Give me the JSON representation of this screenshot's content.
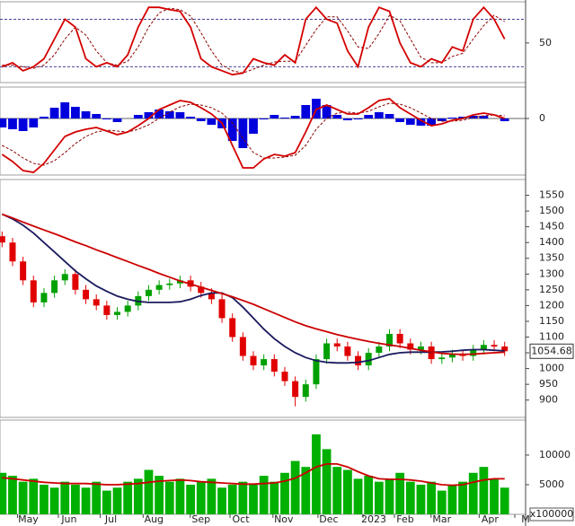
{
  "chart_data": [
    {
      "type": "line",
      "x": [
        0,
        1,
        2,
        3,
        4,
        5,
        6,
        7,
        8,
        9,
        10,
        11,
        12,
        13,
        14,
        15,
        16,
        17,
        18,
        19,
        20,
        21,
        22,
        23,
        24,
        25,
        26,
        27,
        28,
        29,
        30,
        31,
        32,
        33,
        34,
        35,
        36,
        37,
        38,
        39,
        40,
        41,
        42,
        43,
        44,
        45,
        46,
        47,
        48
      ],
      "xlim": [
        -0.2,
        50
      ],
      "ylim": [
        0,
        102
      ],
      "yticks": [
        50
      ],
      "bands": [
        20,
        80
      ],
      "band_color": "#2a2a8a",
      "grid": false,
      "series": [
        {
          "color": "#8b0000",
          "dash": true,
          "values": [
            22,
            22,
            20,
            18,
            22,
            35,
            55,
            70,
            60,
            40,
            25,
            22,
            27,
            45,
            70,
            88,
            94,
            92,
            84,
            63,
            40,
            22,
            15,
            12,
            17,
            22,
            26,
            27,
            27,
            47,
            67,
            83,
            83,
            65,
            45,
            43,
            62,
            85,
            78,
            55,
            32,
            25,
            25,
            33,
            37,
            55,
            72,
            85,
            77
          ]
        },
        {
          "color": "#d40000",
          "dash": false,
          "values": [
            20,
            25,
            15,
            20,
            30,
            55,
            80,
            70,
            30,
            20,
            25,
            20,
            35,
            70,
            95,
            95,
            92,
            90,
            70,
            30,
            20,
            15,
            10,
            12,
            30,
            25,
            22,
            35,
            25,
            80,
            95,
            80,
            75,
            40,
            20,
            70,
            95,
            90,
            50,
            25,
            20,
            30,
            25,
            45,
            40,
            80,
            95,
            80,
            55
          ]
        }
      ]
    },
    {
      "type": "combo",
      "x": [
        0,
        1,
        2,
        3,
        4,
        5,
        6,
        7,
        8,
        9,
        10,
        11,
        12,
        13,
        14,
        15,
        16,
        17,
        18,
        19,
        20,
        21,
        22,
        23,
        24,
        25,
        26,
        27,
        28,
        29,
        30,
        31,
        32,
        33,
        34,
        35,
        36,
        37,
        38,
        39,
        40,
        41,
        42,
        43,
        44,
        45,
        46,
        47,
        48
      ],
      "xlim": [
        -0.2,
        50
      ],
      "ylim": [
        -63,
        35
      ],
      "yticks": [
        0
      ],
      "grid": true,
      "series": [
        {
          "kind": "bar",
          "color": "#0000dd",
          "values": [
            -10,
            -12,
            -14,
            -10,
            2,
            12,
            18,
            13,
            8,
            5,
            -1,
            -4,
            0,
            4,
            7,
            10,
            8,
            7,
            2,
            -3,
            -7,
            -11,
            -25,
            -33,
            -17,
            -1,
            4,
            1,
            3,
            15,
            22,
            15,
            4,
            -2,
            -1,
            4,
            7,
            5,
            -4,
            -7,
            -8,
            -8,
            -3,
            1,
            2,
            3,
            3,
            0,
            -3
          ]
        },
        {
          "kind": "line",
          "color": "#8b0000",
          "dash": true,
          "values": [
            -30,
            -36,
            -44,
            -50,
            -52,
            -47,
            -38,
            -28,
            -20,
            -15,
            -13,
            -14,
            -15,
            -12,
            -7,
            0,
            7,
            13,
            16,
            15,
            12,
            6,
            -5,
            -22,
            -38,
            -44,
            -44,
            -43,
            -41,
            -30,
            -12,
            0,
            6,
            7,
            6,
            8,
            13,
            17,
            16,
            12,
            6,
            0,
            -3,
            -3,
            -2,
            1,
            3,
            4,
            3
          ]
        },
        {
          "kind": "line",
          "color": "#d40000",
          "dash": false,
          "values": [
            -40,
            -48,
            -58,
            -60,
            -50,
            -35,
            -20,
            -15,
            -12,
            -10,
            -14,
            -18,
            -15,
            -8,
            0,
            10,
            15,
            20,
            18,
            12,
            5,
            -5,
            -30,
            -55,
            -55,
            -45,
            -40,
            -42,
            -38,
            -15,
            10,
            15,
            10,
            5,
            5,
            12,
            20,
            22,
            12,
            5,
            -2,
            -8,
            -6,
            -2,
            0,
            4,
            6,
            4,
            0
          ]
        }
      ]
    },
    {
      "type": "candlestick",
      "x": [
        0,
        1,
        2,
        3,
        4,
        5,
        6,
        7,
        8,
        9,
        10,
        11,
        12,
        13,
        14,
        15,
        16,
        17,
        18,
        19,
        20,
        21,
        22,
        23,
        24,
        25,
        26,
        27,
        28,
        29,
        30,
        31,
        32,
        33,
        34,
        35,
        36,
        37,
        38,
        39,
        40,
        41,
        42,
        43,
        44,
        45,
        46,
        47,
        48
      ],
      "xlim": [
        -0.2,
        50
      ],
      "ylim": [
        845,
        1600
      ],
      "yticks": [
        900,
        950,
        1000,
        1050,
        1100,
        1150,
        1200,
        1250,
        1300,
        1350,
        1400,
        1450,
        1500,
        1550
      ],
      "grid": false,
      "up_color": "#00a000",
      "down_color": "#e00000",
      "last_label": "1054.68",
      "open": [
        1420,
        1400,
        1340,
        1280,
        1210,
        1240,
        1280,
        1300,
        1250,
        1220,
        1200,
        1170,
        1180,
        1200,
        1230,
        1250,
        1265,
        1270,
        1280,
        1260,
        1240,
        1220,
        1160,
        1100,
        1040,
        1010,
        1030,
        990,
        960,
        910,
        950,
        1030,
        1080,
        1070,
        1040,
        1010,
        1050,
        1070,
        1110,
        1080,
        1060,
        1070,
        1030,
        1035,
        1045,
        1040,
        1060,
        1075,
        1070
      ],
      "high": [
        1435,
        1415,
        1355,
        1295,
        1255,
        1295,
        1315,
        1315,
        1265,
        1235,
        1215,
        1195,
        1215,
        1245,
        1265,
        1280,
        1285,
        1295,
        1295,
        1275,
        1255,
        1235,
        1175,
        1115,
        1055,
        1045,
        1045,
        1005,
        975,
        965,
        1045,
        1095,
        1095,
        1085,
        1055,
        1065,
        1085,
        1125,
        1125,
        1095,
        1085,
        1085,
        1050,
        1060,
        1060,
        1075,
        1090,
        1090,
        1085
      ],
      "low": [
        1385,
        1325,
        1265,
        1195,
        1195,
        1225,
        1265,
        1235,
        1205,
        1185,
        1155,
        1155,
        1165,
        1185,
        1215,
        1235,
        1250,
        1255,
        1245,
        1225,
        1205,
        1145,
        1085,
        1025,
        995,
        995,
        975,
        945,
        880,
        895,
        935,
        1015,
        1055,
        1025,
        995,
        995,
        1035,
        1055,
        1065,
        1045,
        1045,
        1015,
        1015,
        1020,
        1025,
        1025,
        1045,
        1055,
        1040
      ],
      "close": [
        1400,
        1340,
        1280,
        1210,
        1240,
        1280,
        1300,
        1250,
        1220,
        1200,
        1170,
        1180,
        1200,
        1230,
        1250,
        1265,
        1270,
        1280,
        1260,
        1240,
        1220,
        1160,
        1100,
        1040,
        1010,
        1030,
        990,
        960,
        910,
        950,
        1030,
        1080,
        1070,
        1040,
        1010,
        1050,
        1070,
        1110,
        1080,
        1060,
        1070,
        1030,
        1035,
        1045,
        1040,
        1060,
        1075,
        1070,
        1055
      ],
      "series": [
        {
          "color": "#1a1a5e",
          "values": [
            1490,
            1475,
            1455,
            1430,
            1400,
            1370,
            1340,
            1310,
            1285,
            1262,
            1245,
            1230,
            1220,
            1213,
            1210,
            1210,
            1210,
            1212,
            1220,
            1232,
            1240,
            1240,
            1225,
            1195,
            1160,
            1125,
            1095,
            1070,
            1050,
            1035,
            1025,
            1020,
            1018,
            1018,
            1020,
            1025,
            1035,
            1045,
            1050,
            1052,
            1052,
            1052,
            1053,
            1055,
            1058,
            1060,
            1060,
            1058,
            1056
          ]
        },
        {
          "color": "#cc0000",
          "values": [
            1490,
            1478,
            1465,
            1452,
            1440,
            1428,
            1415,
            1402,
            1390,
            1377,
            1365,
            1352,
            1340,
            1327,
            1315,
            1302,
            1290,
            1278,
            1268,
            1258,
            1248,
            1238,
            1228,
            1216,
            1204,
            1190,
            1176,
            1162,
            1148,
            1136,
            1126,
            1117,
            1108,
            1100,
            1093,
            1086,
            1080,
            1075,
            1070,
            1064,
            1058,
            1053,
            1048,
            1046,
            1045,
            1046,
            1048,
            1050,
            1052
          ]
        }
      ]
    },
    {
      "type": "combo",
      "x": [
        0,
        1,
        2,
        3,
        4,
        5,
        6,
        7,
        8,
        9,
        10,
        11,
        12,
        13,
        14,
        15,
        16,
        17,
        18,
        19,
        20,
        21,
        22,
        23,
        24,
        25,
        26,
        27,
        28,
        29,
        30,
        31,
        32,
        33,
        34,
        35,
        36,
        37,
        38,
        39,
        40,
        41,
        42,
        43,
        44,
        45,
        46,
        47,
        48
      ],
      "xlim": [
        -0.2,
        50
      ],
      "ylim": [
        0,
        15900
      ],
      "yticks": [
        5000,
        10000
      ],
      "grid": false,
      "unit_label": "x100000",
      "xticks": [
        {
          "value": 2.5,
          "label": "May"
        },
        {
          "value": 6.4,
          "label": "Jun"
        },
        {
          "value": 10.4,
          "label": "Jul"
        },
        {
          "value": 14.5,
          "label": "Aug"
        },
        {
          "value": 19,
          "label": "Sep"
        },
        {
          "value": 22.8,
          "label": "Oct"
        },
        {
          "value": 26.9,
          "label": "Nov"
        },
        {
          "value": 31.2,
          "label": "Dec"
        },
        {
          "value": 35.5,
          "label": "2023"
        },
        {
          "value": 38.5,
          "label": "Feb"
        },
        {
          "value": 42,
          "label": "Mar"
        },
        {
          "value": 46.6,
          "label": "Apr"
        },
        {
          "value": 50,
          "label": "M"
        }
      ],
      "series": [
        {
          "kind": "bar",
          "color": "#00b000",
          "values": [
            7000,
            6500,
            5500,
            6000,
            5000,
            4500,
            5500,
            5000,
            4500,
            5500,
            4000,
            4500,
            5500,
            6000,
            7500,
            6500,
            5500,
            6000,
            5000,
            5500,
            6000,
            4500,
            5000,
            5500,
            5000,
            6500,
            5500,
            7000,
            9000,
            8000,
            13500,
            11000,
            8000,
            7500,
            6000,
            6500,
            5500,
            6000,
            7000,
            5500,
            5000,
            5500,
            4000,
            5000,
            5500,
            7000,
            8000,
            6000,
            4500
          ]
        },
        {
          "kind": "line",
          "color": "#cc0000",
          "dash": false,
          "values": [
            6200,
            6000,
            5800,
            5600,
            5400,
            5300,
            5200,
            5200,
            5200,
            5100,
            5000,
            5000,
            5100,
            5200,
            5400,
            5600,
            5700,
            5800,
            5700,
            5500,
            5400,
            5300,
            5200,
            5100,
            5100,
            5200,
            5300,
            5600,
            6100,
            7000,
            8000,
            8500,
            8500,
            8000,
            7200,
            6500,
            6000,
            5900,
            5900,
            5800,
            5600,
            5300,
            5000,
            4900,
            5000,
            5400,
            5800,
            6000,
            6000
          ]
        }
      ]
    }
  ]
}
